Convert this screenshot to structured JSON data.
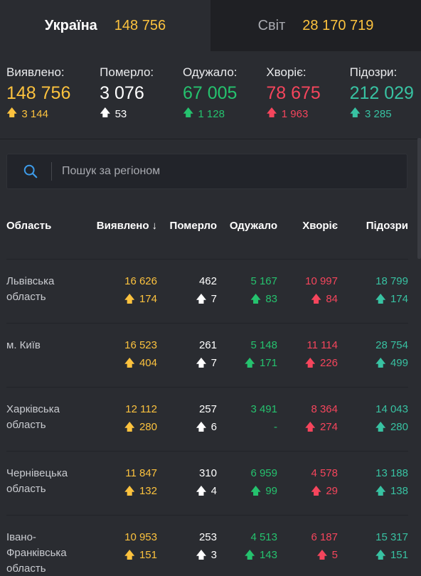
{
  "tabs": [
    {
      "name": "Україна",
      "count": "148 756"
    },
    {
      "name": "Світ",
      "count": "28 170 719"
    }
  ],
  "summary": [
    {
      "label": "Виявлено:",
      "value": "148 756",
      "delta": "3 144",
      "color": "#fcc23e"
    },
    {
      "label": "Померло:",
      "value": "3 076",
      "delta": "53",
      "color": "#ffffff"
    },
    {
      "label": "Одужало:",
      "value": "67 005",
      "delta": "1 128",
      "color": "#25c26e"
    },
    {
      "label": "Хворіє:",
      "value": "78 675",
      "delta": "1 963",
      "color": "#f5455c"
    },
    {
      "label": "Підозри:",
      "value": "212 029",
      "delta": "3 285",
      "color": "#38c2a2"
    }
  ],
  "search": {
    "placeholder": "Пошук за регіоном"
  },
  "table": {
    "headers": [
      "Область",
      "Виявлено",
      "Померло",
      "Одужало",
      "Хворіє",
      "Підозри"
    ],
    "rows": [
      {
        "name": "Львівська область",
        "values": [
          "16 626",
          "462",
          "5 167",
          "10 997",
          "18 799"
        ],
        "deltas": [
          "174",
          "7",
          "83",
          "84",
          "174"
        ]
      },
      {
        "name": "м. Київ",
        "values": [
          "16 523",
          "261",
          "5 148",
          "11 114",
          "28 754"
        ],
        "deltas": [
          "404",
          "7",
          "171",
          "226",
          "499"
        ]
      },
      {
        "name": "Харківська область",
        "values": [
          "12 112",
          "257",
          "3 491",
          "8 364",
          "14 043"
        ],
        "deltas": [
          "280",
          "6",
          "-",
          "274",
          "280"
        ]
      },
      {
        "name": "Чернівецька область",
        "values": [
          "11 847",
          "310",
          "6 959",
          "4 578",
          "13 188"
        ],
        "deltas": [
          "132",
          "4",
          "99",
          "29",
          "138"
        ]
      },
      {
        "name": "Івано-Франківська область",
        "values": [
          "10 953",
          "253",
          "4 513",
          "6 187",
          "15 317"
        ],
        "deltas": [
          "151",
          "3",
          "143",
          "5",
          "151"
        ]
      }
    ]
  },
  "colors": {
    "confirmed": "#fcc23e",
    "deaths": "#ffffff",
    "recovered": "#25c26e",
    "sick": "#f5455c",
    "suspected": "#38c2a2",
    "background": "#2a2c31"
  }
}
